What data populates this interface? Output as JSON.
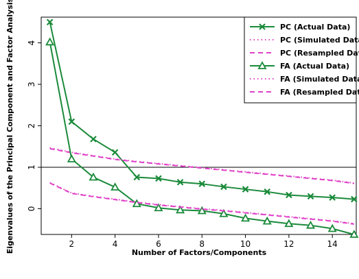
{
  "chart_data": {
    "type": "line",
    "xlabel": "Number of Factors/Components",
    "ylabel": "Eigenvalues of the Principal Component and Factor Analysis",
    "xlim": [
      0.6,
      15.1
    ],
    "ylim": [
      -0.62,
      4.62
    ],
    "x_ticks": [
      2,
      4,
      6,
      8,
      10,
      12,
      14
    ],
    "y_ticks": [
      0,
      1,
      2,
      3,
      4
    ],
    "reference_line_y": 1,
    "grid": false,
    "legend_position": "top-right",
    "x": [
      1,
      2,
      3,
      4,
      5,
      6,
      7,
      8,
      9,
      10,
      11,
      12,
      13,
      14,
      15
    ],
    "series": [
      {
        "name": "PC (Actual Data)",
        "color": "#1a8a3a",
        "line_style": "solid",
        "marker": "x",
        "values": [
          4.5,
          2.1,
          1.68,
          1.36,
          0.76,
          0.73,
          0.64,
          0.6,
          0.53,
          0.47,
          0.41,
          0.33,
          0.3,
          0.27,
          0.23
        ]
      },
      {
        "name": "PC (Simulated Data)",
        "color": "#e040c8",
        "line_style": "dotted",
        "marker": "none",
        "values": [
          1.47,
          1.36,
          1.28,
          1.2,
          1.14,
          1.09,
          1.04,
          0.99,
          0.94,
          0.89,
          0.84,
          0.79,
          0.74,
          0.69,
          0.62
        ]
      },
      {
        "name": "PC (Resampled Data)",
        "color": "#e040c8",
        "line_style": "dashed",
        "marker": "none",
        "values": [
          1.45,
          1.35,
          1.27,
          1.19,
          1.13,
          1.08,
          1.03,
          0.98,
          0.93,
          0.88,
          0.83,
          0.78,
          0.73,
          0.68,
          0.61
        ]
      },
      {
        "name": "FA (Actual Data)",
        "color": "#1a8a3a",
        "line_style": "solid",
        "marker": "triangle",
        "values": [
          4.02,
          1.2,
          0.76,
          0.52,
          0.12,
          0.02,
          -0.03,
          -0.05,
          -0.12,
          -0.23,
          -0.3,
          -0.36,
          -0.4,
          -0.48,
          -0.62
        ]
      },
      {
        "name": "FA (Simulated Data)",
        "color": "#e040c8",
        "line_style": "dotted",
        "marker": "none",
        "values": [
          0.63,
          0.38,
          0.3,
          0.23,
          0.16,
          0.1,
          0.05,
          0.0,
          -0.04,
          -0.09,
          -0.14,
          -0.19,
          -0.24,
          -0.29,
          -0.36
        ]
      },
      {
        "name": "FA (Resampled Data)",
        "color": "#e040c8",
        "line_style": "dashed",
        "marker": "none",
        "values": [
          0.62,
          0.37,
          0.29,
          0.22,
          0.15,
          0.09,
          0.04,
          -0.01,
          -0.05,
          -0.1,
          -0.15,
          -0.2,
          -0.25,
          -0.3,
          -0.37
        ]
      }
    ]
  }
}
